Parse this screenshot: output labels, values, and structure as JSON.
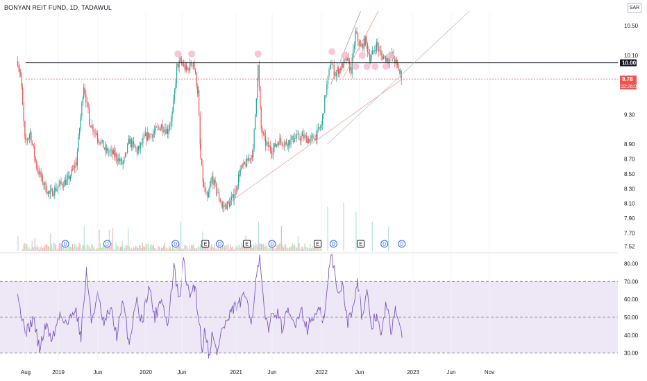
{
  "header": {
    "title": "BONYAN REIT FUND, 1D, TADAWUL",
    "currency": "SAR"
  },
  "colors": {
    "up": "#26a69a",
    "down": "#ef5350",
    "rsi_line": "#7e57c2",
    "rsi_band": "#ede7f6",
    "marker": "#f8bbd0",
    "trendline": "#ef9a9a",
    "channel": "#9e9e9e",
    "dividend": "#2962ff",
    "earnings": "#131722"
  },
  "chart_data": [
    {
      "type": "candlestick",
      "title": "BONYAN REIT FUND, 1D, TADAWUL",
      "ylim": [
        7.46,
        10.68
      ],
      "y_ticks": [
        "10.50",
        "10.10",
        "9.30",
        "8.90",
        "8.70",
        "8.50",
        "8.30",
        "8.10",
        "7.90",
        "7.70",
        "7.52"
      ],
      "x_ticks": [
        "Aug",
        "2019",
        "Jun",
        "2020",
        "Jun",
        "2021",
        "Jun",
        "2022",
        "Jun",
        "2023",
        "Jun",
        "Nov"
      ],
      "price_path": [
        [
          "2018-08-01",
          10.02
        ],
        [
          "2018-08-10",
          9.85
        ],
        [
          "2018-08-25",
          8.92
        ],
        [
          "2018-09-10",
          9.05
        ],
        [
          "2018-10-01",
          8.6
        ],
        [
          "2018-10-20",
          8.4
        ],
        [
          "2018-11-10",
          8.22
        ],
        [
          "2018-12-15",
          8.35
        ],
        [
          "2019-01-10",
          8.42
        ],
        [
          "2019-02-05",
          8.65
        ],
        [
          "2019-03-01",
          9.7
        ],
        [
          "2019-03-20",
          9.2
        ],
        [
          "2019-04-15",
          9.0
        ],
        [
          "2019-05-10",
          8.82
        ],
        [
          "2019-06-10",
          8.75
        ],
        [
          "2019-07-05",
          8.62
        ],
        [
          "2019-07-25",
          8.95
        ],
        [
          "2019-08-20",
          8.8
        ],
        [
          "2019-09-15",
          9.0
        ],
        [
          "2019-10-10",
          9.05
        ],
        [
          "2019-11-05",
          9.15
        ],
        [
          "2019-11-25",
          9.08
        ],
        [
          "2019-12-10",
          9.3
        ],
        [
          "2019-12-25",
          9.95
        ],
        [
          "2020-01-05",
          10.02
        ],
        [
          "2020-01-25",
          9.9
        ],
        [
          "2020-02-15",
          10.02
        ],
        [
          "2020-03-01",
          9.6
        ],
        [
          "2020-03-10",
          8.7
        ],
        [
          "2020-03-20",
          8.3
        ],
        [
          "2020-04-01",
          8.15
        ],
        [
          "2020-04-15",
          8.45
        ],
        [
          "2020-05-01",
          8.25
        ],
        [
          "2020-05-20",
          8.05
        ],
        [
          "2020-06-10",
          8.1
        ],
        [
          "2020-06-25",
          8.2
        ],
        [
          "2020-07-15",
          8.55
        ],
        [
          "2020-08-05",
          8.65
        ],
        [
          "2020-08-25",
          8.8
        ],
        [
          "2020-09-10",
          9.95
        ],
        [
          "2020-09-20",
          9.1
        ],
        [
          "2020-10-05",
          8.9
        ],
        [
          "2020-10-25",
          8.82
        ],
        [
          "2020-11-15",
          8.95
        ],
        [
          "2020-12-10",
          8.92
        ],
        [
          "2021-01-05",
          8.98
        ],
        [
          "2021-02-01",
          9.0
        ],
        [
          "2021-02-25",
          8.95
        ],
        [
          "2021-03-15",
          9.02
        ],
        [
          "2021-04-01",
          9.15
        ],
        [
          "2021-04-15",
          9.6
        ],
        [
          "2021-05-01",
          10.0
        ],
        [
          "2021-05-15",
          9.85
        ],
        [
          "2021-06-05",
          9.95
        ],
        [
          "2021-06-20",
          10.05
        ],
        [
          "2021-07-05",
          9.9
        ],
        [
          "2021-07-20",
          10.4
        ],
        [
          "2021-08-05",
          10.2
        ],
        [
          "2021-08-20",
          10.3
        ],
        [
          "2021-09-05",
          10.05
        ],
        [
          "2021-09-25",
          10.25
        ],
        [
          "2021-10-10",
          10.1
        ],
        [
          "2021-10-30",
          10.05
        ],
        [
          "2021-11-15",
          10.1
        ],
        [
          "2021-12-01",
          9.95
        ],
        [
          "2021-12-10",
          9.85
        ],
        [
          "2021-12-16",
          9.78
        ]
      ],
      "horizontal_levels": [
        {
          "price": 10.0,
          "label": "10.00",
          "color": "#131722"
        },
        {
          "price": 9.78,
          "label": "9.78",
          "sublabel": "02:26:06",
          "color": "#ef5350"
        }
      ],
      "trendlines": [
        {
          "from": [
            "2020-05-20",
            8.05
          ],
          "to": [
            "2021-12-16",
            9.78
          ],
          "color": "#ef9a9a"
        },
        {
          "from": [
            "2021-04-20",
            8.9
          ],
          "to": [
            "2022-07-20",
            10.7
          ],
          "color": "#c0c0c0"
        },
        {
          "from": [
            "2021-05-01",
            9.7
          ],
          "to": [
            "2021-08-05",
            10.7
          ],
          "color": "#9e9e9e"
        },
        {
          "from": [
            "2021-06-10",
            9.8
          ],
          "to": [
            "2021-10-01",
            10.7
          ],
          "color": "#ef9a9a"
        }
      ],
      "marked_points": [
        [
          "2019-12-28",
          10.12
        ],
        [
          "2020-02-10",
          10.12
        ],
        [
          "2020-09-10",
          10.12
        ],
        [
          "2021-05-05",
          10.15
        ],
        [
          "2021-06-15",
          10.1
        ],
        [
          "2021-07-20",
          9.95
        ],
        [
          "2021-08-10",
          10.1
        ],
        [
          "2021-08-25",
          9.95
        ],
        [
          "2021-09-20",
          9.95
        ],
        [
          "2021-10-25",
          9.95
        ],
        [
          "2021-11-10",
          10.1
        ]
      ]
    },
    {
      "type": "bar",
      "title": "",
      "x": [
        "2018-08-01",
        "2018-09-15",
        "2019-03-01",
        "2019-07-01",
        "2020-01-05",
        "2020-03-15",
        "2020-09-10",
        "2021-01-15",
        "2021-04-20",
        "2021-06-10",
        "2021-07-20",
        "2021-09-10",
        "2021-11-01"
      ],
      "values": [
        0.3,
        0.2,
        0.5,
        0.2,
        0.6,
        0.4,
        0.6,
        0.3,
        0.9,
        1.0,
        0.8,
        0.6,
        0.5
      ],
      "events": [
        {
          "date": "2019-01-01",
          "label": "D",
          "kind": "dividend"
        },
        {
          "date": "2019-05-15",
          "label": "D",
          "kind": "dividend"
        },
        {
          "date": "2019-12-20",
          "label": "D",
          "kind": "dividend"
        },
        {
          "date": "2020-03-25",
          "label": "E",
          "kind": "earnings"
        },
        {
          "date": "2020-05-10",
          "label": "D",
          "kind": "dividend"
        },
        {
          "date": "2020-08-05",
          "label": "E",
          "kind": "earnings"
        },
        {
          "date": "2020-10-25",
          "label": "D",
          "kind": "dividend"
        },
        {
          "date": "2021-03-20",
          "label": "E",
          "kind": "earnings"
        },
        {
          "date": "2021-05-10",
          "label": "D",
          "kind": "dividend"
        },
        {
          "date": "2021-08-05",
          "label": "E",
          "kind": "earnings"
        },
        {
          "date": "2021-10-20",
          "label": "D",
          "kind": "dividend"
        },
        {
          "date": "2021-12-15",
          "label": "D",
          "kind": "dividend"
        }
      ]
    },
    {
      "type": "line",
      "title": "",
      "ylim": [
        26,
        86
      ],
      "y_ticks": [
        "80.00",
        "70.00",
        "60.00",
        "50.00",
        "40.00",
        "30.00"
      ],
      "reference_lines": [
        70,
        50,
        30
      ],
      "series": [
        {
          "values": [
            [
              "2018-08-01",
              67
            ],
            [
              "2018-08-15",
              48
            ],
            [
              "2018-09-01",
              42
            ],
            [
              "2018-09-20",
              50
            ],
            [
              "2018-10-10",
              32
            ],
            [
              "2018-10-30",
              45
            ],
            [
              "2018-11-20",
              38
            ],
            [
              "2018-12-15",
              52
            ],
            [
              "2019-01-10",
              46
            ],
            [
              "2019-02-01",
              56
            ],
            [
              "2019-02-20",
              40
            ],
            [
              "2019-03-10",
              76
            ],
            [
              "2019-03-25",
              48
            ],
            [
              "2019-04-15",
              62
            ],
            [
              "2019-05-05",
              45
            ],
            [
              "2019-05-25",
              55
            ],
            [
              "2019-06-15",
              40
            ],
            [
              "2019-07-05",
              58
            ],
            [
              "2019-07-25",
              35
            ],
            [
              "2019-08-15",
              60
            ],
            [
              "2019-09-05",
              47
            ],
            [
              "2019-09-25",
              68
            ],
            [
              "2019-10-15",
              50
            ],
            [
              "2019-11-05",
              62
            ],
            [
              "2019-11-25",
              44
            ],
            [
              "2019-12-15",
              78
            ],
            [
              "2020-01-01",
              58
            ],
            [
              "2020-01-15",
              82
            ],
            [
              "2020-02-01",
              62
            ],
            [
              "2020-02-20",
              68
            ],
            [
              "2020-03-05",
              48
            ],
            [
              "2020-03-15",
              32
            ],
            [
              "2020-03-25",
              45
            ],
            [
              "2020-04-05",
              28
            ],
            [
              "2020-04-15",
              40
            ],
            [
              "2020-05-01",
              30
            ],
            [
              "2020-05-15",
              42
            ],
            [
              "2020-06-05",
              48
            ],
            [
              "2020-06-25",
              55
            ],
            [
              "2020-07-15",
              58
            ],
            [
              "2020-08-05",
              62
            ],
            [
              "2020-08-20",
              48
            ],
            [
              "2020-09-05",
              72
            ],
            [
              "2020-09-15",
              83
            ],
            [
              "2020-09-30",
              52
            ],
            [
              "2020-10-15",
              45
            ],
            [
              "2020-11-05",
              55
            ],
            [
              "2020-11-25",
              44
            ],
            [
              "2020-12-15",
              52
            ],
            [
              "2021-01-05",
              46
            ],
            [
              "2021-01-25",
              55
            ],
            [
              "2021-02-15",
              44
            ],
            [
              "2021-03-05",
              50
            ],
            [
              "2021-03-25",
              53
            ],
            [
              "2021-04-10",
              48
            ],
            [
              "2021-04-25",
              75
            ],
            [
              "2021-05-05",
              86
            ],
            [
              "2021-05-20",
              65
            ],
            [
              "2021-06-10",
              68
            ],
            [
              "2021-06-25",
              46
            ],
            [
              "2021-07-10",
              55
            ],
            [
              "2021-07-25",
              72
            ],
            [
              "2021-08-10",
              50
            ],
            [
              "2021-08-25",
              62
            ],
            [
              "2021-09-10",
              45
            ],
            [
              "2021-09-25",
              52
            ],
            [
              "2021-10-10",
              38
            ],
            [
              "2021-10-25",
              58
            ],
            [
              "2021-11-10",
              42
            ],
            [
              "2021-11-25",
              57
            ],
            [
              "2021-12-05",
              44
            ],
            [
              "2021-12-16",
              38
            ]
          ]
        }
      ]
    }
  ]
}
